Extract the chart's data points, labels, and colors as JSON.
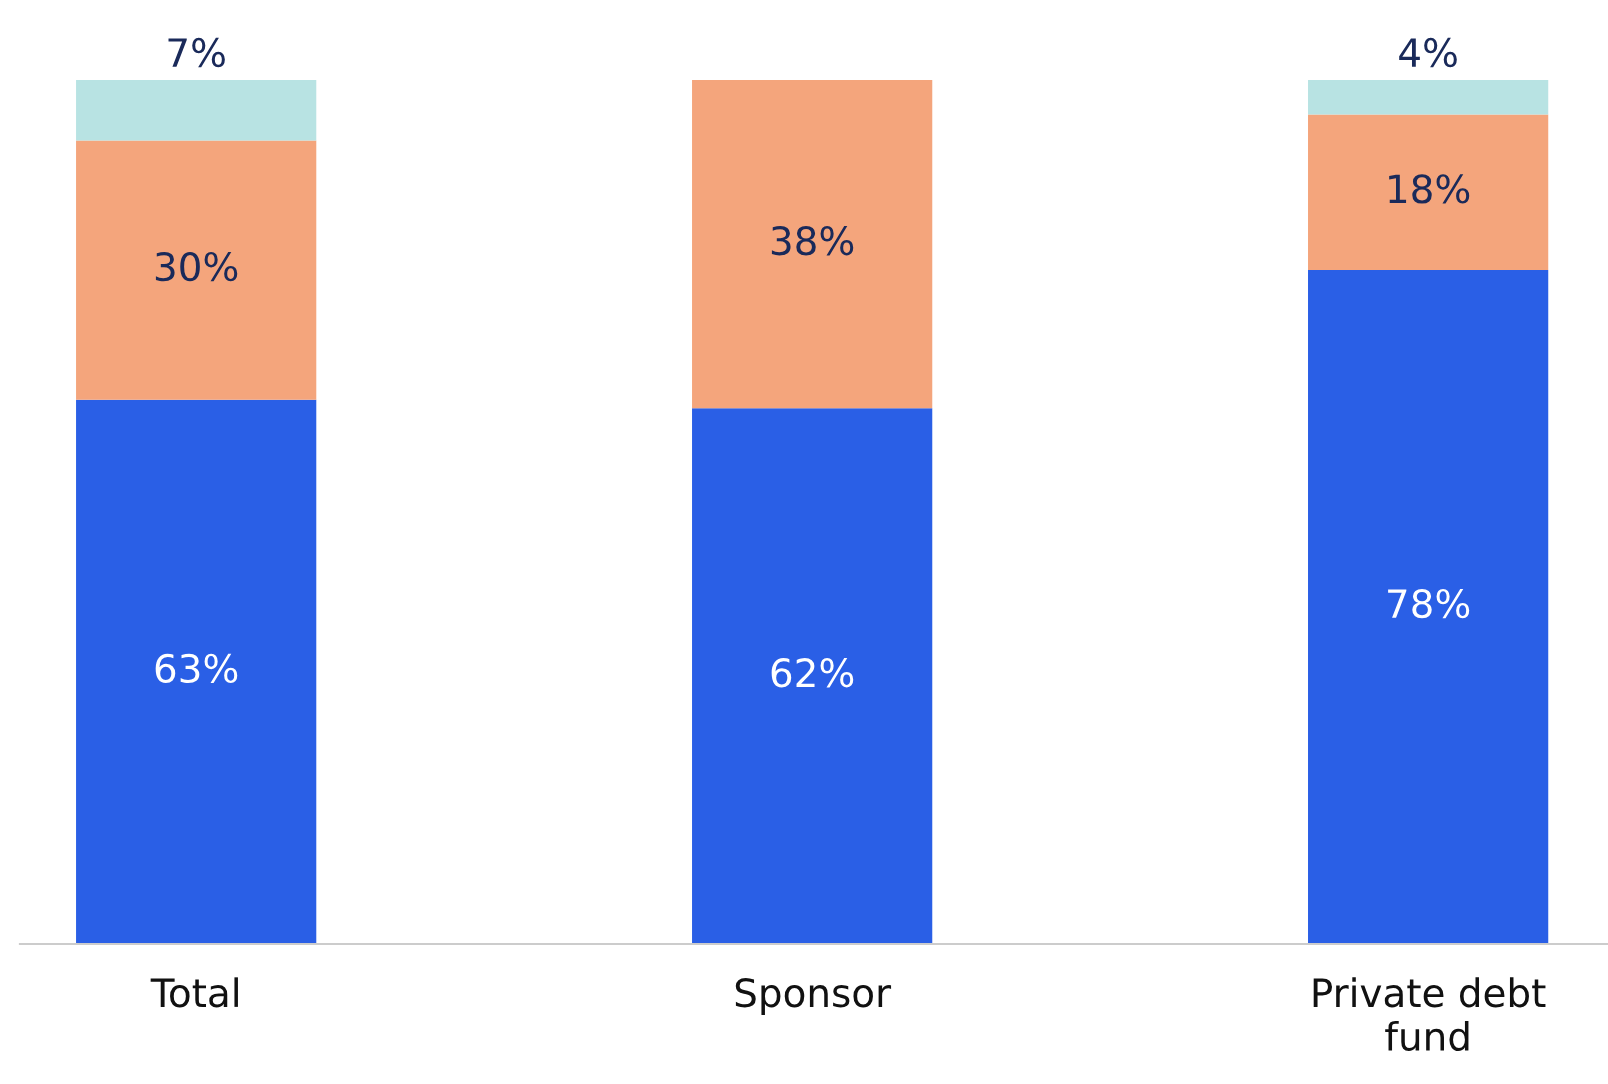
{
  "chart_data": {
    "type": "bar",
    "stacked": true,
    "categories": [
      "Total",
      "Sponsor",
      "Private debt\nfund"
    ],
    "series": [
      {
        "color": "#2a5fe6",
        "values": [
          63,
          62,
          78
        ],
        "value_labels": [
          "63%",
          "62%",
          "78%"
        ]
      },
      {
        "color": "#f4a57c",
        "values": [
          30,
          38,
          18
        ],
        "value_labels": [
          "30%",
          "38%",
          "18%"
        ]
      },
      {
        "color": "#b8e3e3",
        "values": [
          7,
          null,
          4
        ],
        "value_labels": [
          "7%",
          null,
          "4%"
        ]
      }
    ],
    "tick_labels": "x",
    "grid": false,
    "legend": false
  }
}
